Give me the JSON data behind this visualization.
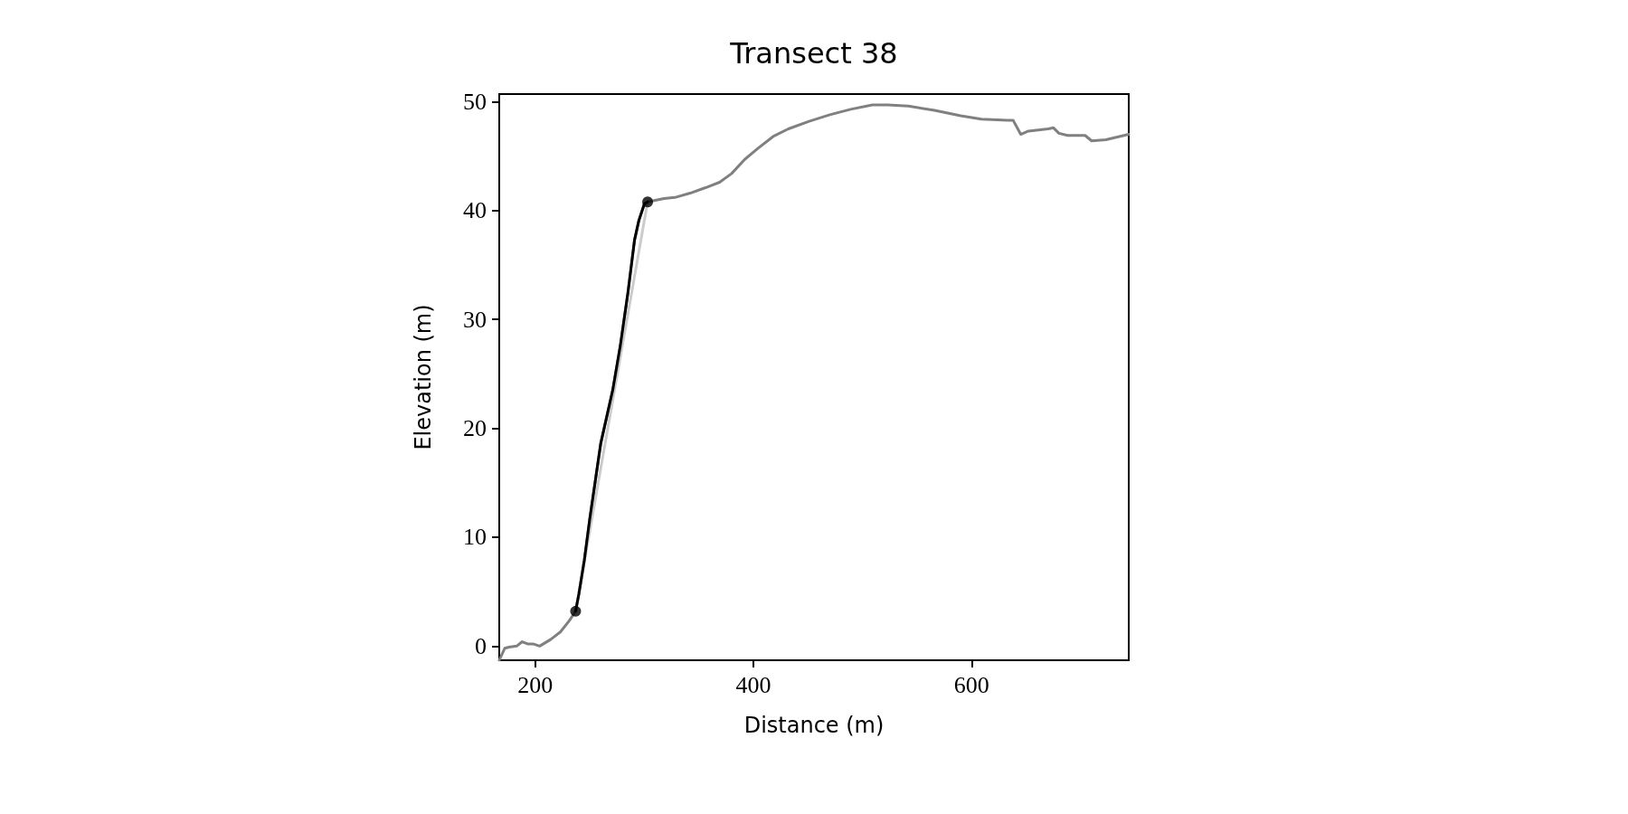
{
  "chart_data": {
    "type": "line",
    "title": "Transect 38",
    "xlabel": "Distance (m)",
    "ylabel": "Elevation (m)",
    "xlim": [
      167,
      744
    ],
    "xticks": [
      200,
      400,
      600
    ],
    "ylim": [
      -1.3,
      50.7
    ],
    "yticks": [
      0,
      10,
      20,
      30,
      40,
      50
    ],
    "grid": false,
    "line_style": "solid",
    "series": [
      {
        "color": "#808080",
        "x": [
          167,
          172,
          176,
          183,
          188,
          193,
          198,
          204,
          214,
          223,
          231,
          237,
          240,
          245,
          250,
          260,
          271,
          278,
          285,
          291,
          295,
          300,
          303,
          318,
          328,
          342,
          356,
          369,
          380,
          392,
          404,
          418,
          432,
          451,
          470,
          489,
          509,
          523,
          542,
          566,
          590,
          609,
          633,
          638,
          645,
          652,
          670,
          675,
          680,
          688,
          704,
          710,
          723,
          744
        ],
        "values": [
          -1.3,
          -0.2,
          -0.1,
          0,
          0.4,
          0.2,
          0.2,
          0,
          0.6,
          1.3,
          2.3,
          3.2,
          4.8,
          7.9,
          11.7,
          18.6,
          23.5,
          27.6,
          32.5,
          37.3,
          39.1,
          40.6,
          40.8,
          41.1,
          41.2,
          41.6,
          42.1,
          42.6,
          43.4,
          44.7,
          45.7,
          46.8,
          47.5,
          48.2,
          48.8,
          49.3,
          49.7,
          49.7,
          49.6,
          49.2,
          48.7,
          48.4,
          48.3,
          48.3,
          47.0,
          47.3,
          47.5,
          47.6,
          47.1,
          46.9,
          46.9,
          46.4,
          46.5,
          47.0
        ]
      },
      {
        "color": "#cccccc",
        "x": [
          237,
          303
        ],
        "values": [
          3.2,
          40.8
        ]
      },
      {
        "color": "#000000",
        "x": [
          237,
          240,
          245,
          250,
          260,
          271,
          278,
          285,
          291,
          295,
          300,
          303
        ],
        "values": [
          3.2,
          4.8,
          7.9,
          11.7,
          18.6,
          23.5,
          27.6,
          32.5,
          37.3,
          39.1,
          40.6,
          40.8
        ]
      },
      {
        "type": "scatter",
        "marker": "circle",
        "color": "#000000",
        "x": [
          237,
          303
        ],
        "values": [
          3.2,
          40.8
        ]
      }
    ]
  }
}
